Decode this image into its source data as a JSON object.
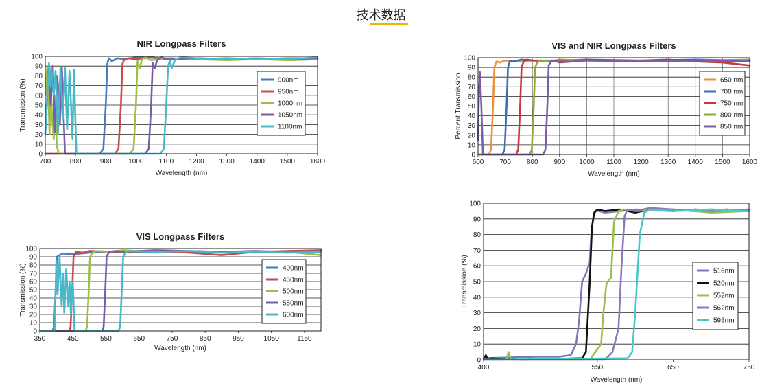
{
  "page": {
    "title": "技术数据",
    "accent_color": "#f0b400"
  },
  "chart_data": [
    {
      "id": "nir",
      "type": "line",
      "title": "NIR Longpass Filters",
      "xlabel": "Wavelength (nm)",
      "ylabel": "Transmission (%)",
      "xlim": [
        700,
        1600
      ],
      "ylim": [
        0,
        100
      ],
      "xticks": [
        700,
        800,
        900,
        1000,
        1100,
        1200,
        1300,
        1400,
        1500,
        1600
      ],
      "yticks": [
        0,
        10,
        20,
        30,
        40,
        50,
        60,
        70,
        80,
        90,
        100
      ],
      "grid": "horizontal",
      "legend": "right",
      "series": [
        {
          "name": "900nm",
          "color": "#4a7ab8",
          "x": [
            700,
            880,
            892,
            900,
            905,
            910,
            920,
            940,
            960,
            1000,
            1100,
            1200,
            1300,
            1400,
            1500,
            1600
          ],
          "y": [
            0,
            0,
            5,
            50,
            92,
            98,
            95,
            98,
            97,
            99,
            98,
            97,
            98,
            97,
            98,
            98
          ]
        },
        {
          "name": "950nm",
          "color": "#c84a4a",
          "x": [
            700,
            930,
            942,
            950,
            955,
            960,
            975,
            1000,
            1050,
            1100,
            1200,
            1300,
            1400,
            1500,
            1600
          ],
          "y": [
            0,
            0,
            5,
            50,
            92,
            96,
            98,
            97,
            99,
            97,
            98,
            97,
            98,
            96,
            97
          ]
        },
        {
          "name": "1000nm",
          "color": "#9ac04a",
          "x": [
            700,
            706,
            710,
            714,
            718,
            722,
            728,
            732,
            738,
            745,
            980,
            992,
            1000,
            1005,
            1012,
            1020,
            1030,
            1050,
            1100,
            1200,
            1300,
            1400,
            1500,
            1600
          ],
          "y": [
            60,
            88,
            62,
            20,
            75,
            40,
            15,
            60,
            8,
            0,
            0,
            5,
            50,
            95,
            88,
            97,
            99,
            96,
            98,
            97,
            96,
            97,
            96,
            97
          ]
        },
        {
          "name": "1050nm",
          "color": "#7a5ca8",
          "x": [
            700,
            710,
            718,
            725,
            732,
            740,
            748,
            755,
            765,
            1030,
            1042,
            1050,
            1055,
            1062,
            1070,
            1085,
            1100,
            1200,
            1300,
            1400,
            1500,
            1600
          ],
          "y": [
            20,
            85,
            50,
            90,
            22,
            80,
            30,
            88,
            0,
            0,
            5,
            50,
            93,
            88,
            96,
            99,
            97,
            98,
            97,
            98,
            97,
            98
          ]
        },
        {
          "name": "1100nm",
          "color": "#4ab8c8",
          "x": [
            700,
            712,
            716,
            720,
            728,
            734,
            742,
            750,
            758,
            765,
            772,
            780,
            790,
            795,
            800,
            803,
            1080,
            1092,
            1100,
            1106,
            1112,
            1118,
            1130,
            1150,
            1200,
            1300,
            1400,
            1500,
            1600
          ],
          "y": [
            20,
            93,
            70,
            88,
            60,
            85,
            20,
            88,
            35,
            88,
            25,
            85,
            15,
            86,
            30,
            0,
            0,
            5,
            50,
            90,
            96,
            88,
            97,
            99,
            98,
            97,
            98,
            97,
            99
          ]
        }
      ]
    },
    {
      "id": "visnir",
      "type": "line",
      "title": "VIS and NIR Longpass Filters",
      "xlabel": "Wavelength (nm)",
      "ylabel": "Percent Transmission",
      "xlim": [
        600,
        1600
      ],
      "ylim": [
        0,
        100
      ],
      "xticks": [
        600,
        700,
        800,
        900,
        1000,
        1100,
        1200,
        1300,
        1400,
        1500,
        1600
      ],
      "yticks": [
        0,
        10,
        20,
        30,
        40,
        50,
        60,
        70,
        80,
        90,
        100
      ],
      "grid": "both",
      "legend": "right",
      "series": [
        {
          "name": "650 nm",
          "color": "#e8913a",
          "x": [
            600,
            640,
            648,
            655,
            660,
            668,
            680,
            700,
            750,
            800,
            900,
            1000,
            1200,
            1400,
            1600
          ],
          "y": [
            0,
            0,
            5,
            50,
            90,
            96,
            95,
            97,
            96,
            97,
            96,
            97,
            96,
            97,
            96
          ]
        },
        {
          "name": "700 nm",
          "color": "#3a6fb0",
          "x": [
            600,
            690,
            698,
            705,
            710,
            718,
            730,
            760,
            800,
            900,
            1000,
            1200,
            1400,
            1600
          ],
          "y": [
            0,
            0,
            5,
            50,
            90,
            97,
            96,
            98,
            97,
            97,
            98,
            97,
            98,
            97
          ]
        },
        {
          "name": "750 nm",
          "color": "#c23a3a",
          "x": [
            600,
            740,
            748,
            755,
            760,
            768,
            780,
            800,
            900,
            1000,
            1100,
            1200,
            1300,
            1400,
            1500,
            1600
          ],
          "y": [
            0,
            0,
            5,
            50,
            90,
            96,
            98,
            97,
            96,
            98,
            96,
            97,
            98,
            96,
            95,
            92
          ]
        },
        {
          "name": "800 nm",
          "color": "#8aac3a",
          "x": [
            600,
            790,
            798,
            805,
            810,
            818,
            830,
            860,
            900,
            1000,
            1200,
            1400,
            1600
          ],
          "y": [
            0,
            0,
            5,
            50,
            90,
            95,
            97,
            96,
            98,
            97,
            96,
            97,
            98
          ]
        },
        {
          "name": "850 nm",
          "color": "#7a5ca8",
          "x": [
            600,
            603,
            607,
            612,
            618,
            840,
            848,
            855,
            860,
            868,
            880,
            900,
            1000,
            1200,
            1400,
            1600
          ],
          "y": [
            15,
            60,
            85,
            50,
            0,
            0,
            5,
            50,
            92,
            96,
            97,
            95,
            97,
            96,
            97,
            96
          ]
        }
      ]
    },
    {
      "id": "vis",
      "type": "line",
      "title": "VIS Longpass Filters",
      "xlabel": "Wavelength (nm)",
      "ylabel": "Transmission (%)",
      "xlim": [
        350,
        1200
      ],
      "ylim": [
        0,
        100
      ],
      "xticks": [
        350,
        450,
        550,
        650,
        750,
        850,
        950,
        1050,
        1150
      ],
      "xtick_labels": [
        "350",
        "450",
        "550",
        "650",
        "750",
        "850",
        "950",
        "1050",
        "1150"
      ],
      "extra_xticks": [
        {
          "x": 400,
          "label": ""
        }
      ],
      "ytick_labels_at": [
        0,
        10,
        20,
        30,
        40,
        50,
        60,
        70,
        80,
        90,
        100
      ],
      "grid": "horizontal",
      "legend": "right",
      "series": [
        {
          "name": "400nm",
          "color": "#4a7ab8",
          "x": [
            350,
            388,
            393,
            398,
            402,
            410,
            420,
            450,
            500,
            600,
            700,
            800,
            900,
            1000,
            1100,
            1200
          ],
          "y": [
            0,
            0,
            5,
            50,
            90,
            92,
            94,
            93,
            95,
            96,
            95,
            96,
            95,
            96,
            95,
            96
          ]
        },
        {
          "name": "450nm",
          "color": "#c84a4a",
          "x": [
            350,
            438,
            443,
            448,
            452,
            460,
            480,
            500,
            600,
            700,
            800,
            900,
            1000,
            1100,
            1200
          ],
          "y": [
            0,
            0,
            5,
            50,
            90,
            96,
            95,
            97,
            96,
            97,
            95,
            92,
            96,
            97,
            98
          ]
        },
        {
          "name": "500nm",
          "color": "#9ac04a",
          "x": [
            350,
            488,
            493,
            498,
            502,
            510,
            520,
            560,
            600,
            700,
            800,
            900,
            1000,
            1100,
            1200
          ],
          "y": [
            0,
            0,
            5,
            50,
            90,
            95,
            97,
            96,
            98,
            96,
            97,
            96,
            95,
            96,
            92
          ]
        },
        {
          "name": "550nm",
          "color": "#7a5ca8",
          "x": [
            350,
            538,
            543,
            548,
            552,
            560,
            580,
            600,
            700,
            800,
            900,
            1000,
            1100,
            1200
          ],
          "y": [
            0,
            0,
            5,
            50,
            90,
            96,
            97,
            96,
            98,
            97,
            96,
            97,
            96,
            97
          ]
        },
        {
          "name": "600nm",
          "color": "#4ab8c8",
          "x": [
            350,
            395,
            400,
            404,
            410,
            416,
            420,
            424,
            430,
            436,
            440,
            444,
            450,
            455,
            588,
            593,
            598,
            602,
            610,
            620,
            700,
            800,
            900,
            1000,
            1100,
            1200
          ],
          "y": [
            0,
            0,
            85,
            45,
            90,
            30,
            70,
            22,
            75,
            30,
            60,
            20,
            60,
            0,
            0,
            5,
            50,
            90,
            96,
            97,
            96,
            97,
            95,
            96,
            95,
            96
          ]
        }
      ]
    },
    {
      "id": "ultra",
      "type": "line",
      "title": "",
      "xlabel": "Wavelength (nm)",
      "ylabel": "Transmission (%)",
      "xlim": [
        400,
        750
      ],
      "ylim": [
        0,
        100
      ],
      "xticks": [
        400,
        550,
        650,
        750
      ],
      "yticks": [
        0,
        10,
        20,
        30,
        40,
        50,
        60,
        70,
        80,
        90,
        100
      ],
      "grid": "horizontal",
      "legend": "right",
      "series": [
        {
          "name": "516nm",
          "color": "#7a7ab8",
          "x": [
            400,
            470,
            500,
            515,
            522,
            526,
            530,
            535,
            540,
            542,
            545,
            548,
            552,
            560,
            580,
            600,
            650,
            700,
            750
          ],
          "y": [
            1,
            2,
            2,
            3,
            10,
            25,
            50,
            55,
            62,
            80,
            92,
            95,
            95,
            94,
            95,
            96,
            95,
            96,
            95
          ]
        },
        {
          "name": "520nm",
          "color": "#111111",
          "x": [
            400,
            403,
            406,
            410,
            450,
            530,
            535,
            540,
            543,
            546,
            550,
            560,
            580,
            600,
            620,
            650,
            680,
            700,
            720,
            750
          ],
          "y": [
            0,
            3,
            0,
            1,
            0,
            1,
            5,
            50,
            85,
            94,
            96,
            95,
            96,
            94,
            96,
            95,
            96,
            95,
            96,
            95
          ]
        },
        {
          "name": "552nm",
          "color": "#9ac04a",
          "x": [
            400,
            430,
            433,
            436,
            540,
            555,
            558,
            562,
            565,
            568,
            570,
            572,
            578,
            585,
            600,
            650,
            700,
            750
          ],
          "y": [
            0,
            0,
            5,
            0,
            0,
            10,
            30,
            48,
            51,
            52,
            70,
            88,
            95,
            96,
            95,
            96,
            94,
            95
          ]
        },
        {
          "name": "562nm",
          "color": "#8a7ab8",
          "x": [
            400,
            560,
            570,
            578,
            582,
            586,
            590,
            600,
            620,
            650,
            700,
            750
          ],
          "y": [
            0,
            0,
            5,
            20,
            60,
            92,
            96,
            95,
            97,
            96,
            95,
            96
          ]
        },
        {
          "name": "593nm",
          "color": "#4ac8c8",
          "x": [
            400,
            590,
            596,
            600,
            606,
            612,
            620,
            650,
            700,
            750
          ],
          "y": [
            0,
            1,
            5,
            30,
            80,
            94,
            96,
            95,
            96,
            95
          ]
        }
      ]
    }
  ]
}
